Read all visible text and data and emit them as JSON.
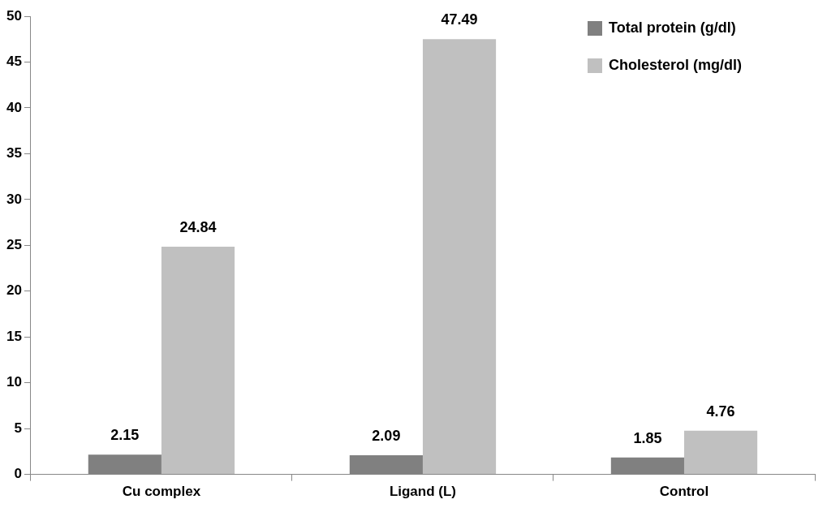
{
  "chart_data": {
    "type": "bar",
    "categories": [
      "Cu complex",
      "Ligand (L)",
      "Control"
    ],
    "series": [
      {
        "name": "Total protein (g/dl)",
        "color": "#808080",
        "values": [
          2.15,
          2.09,
          1.85
        ]
      },
      {
        "name": "Cholesterol (mg/dl)",
        "color": "#c0c0c0",
        "values": [
          24.84,
          47.49,
          4.76
        ]
      }
    ],
    "ylim": [
      0,
      50
    ],
    "yticks": [
      0,
      5,
      10,
      15,
      20,
      25,
      30,
      35,
      40,
      45,
      50
    ],
    "grid": false,
    "legend": "top right",
    "data_labels": true
  }
}
